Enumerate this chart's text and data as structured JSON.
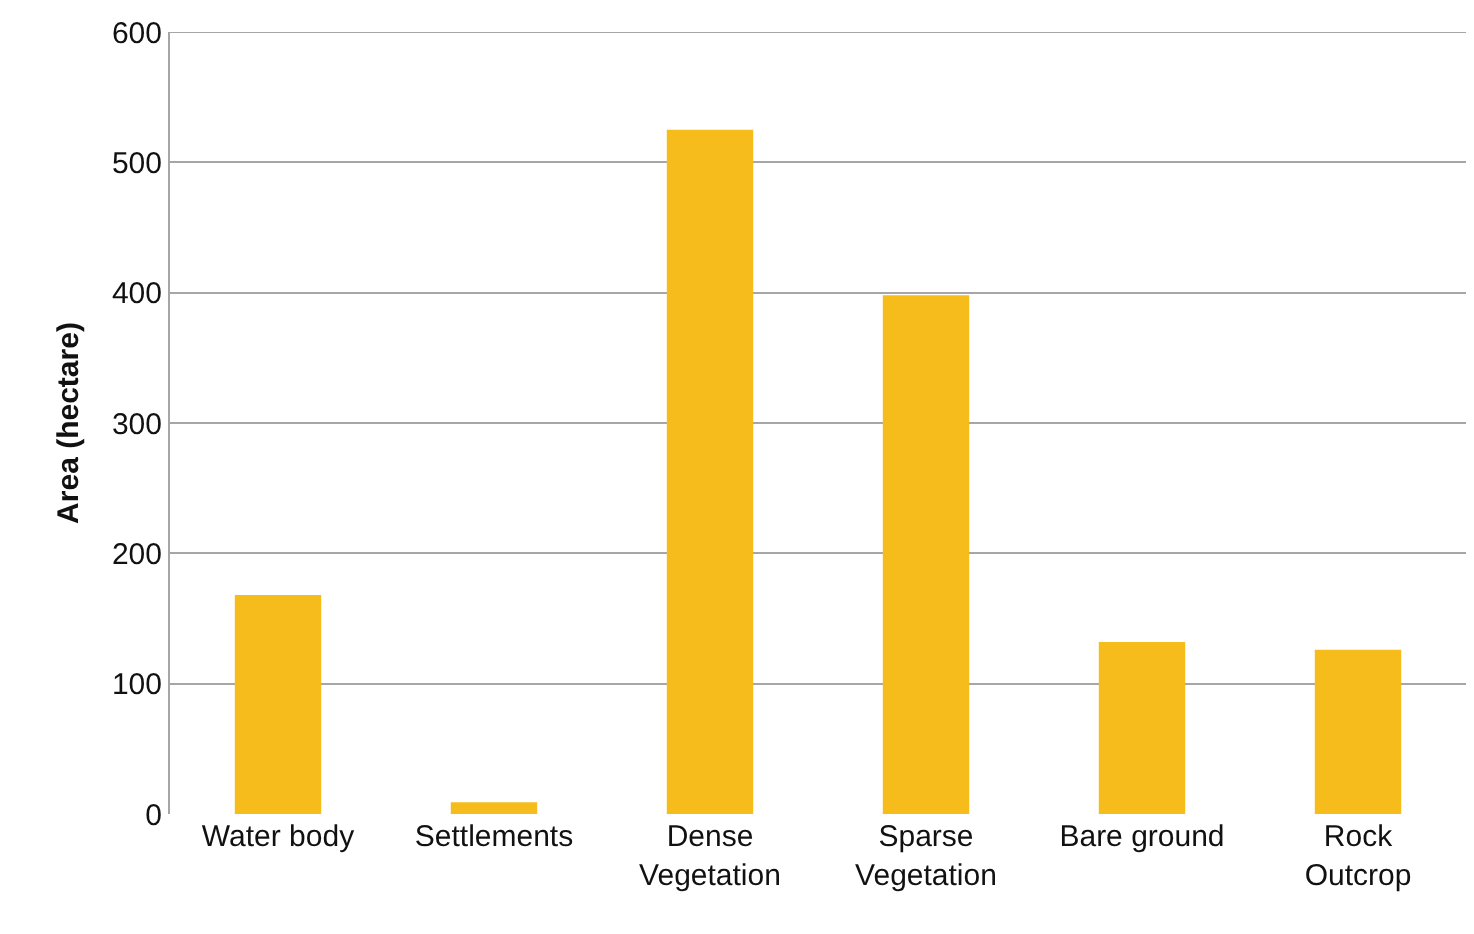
{
  "chart_data": {
    "type": "bar",
    "ylabel": "Area (hectare)",
    "categories": [
      "Water body",
      "Settlements",
      "Dense\nVegetation",
      "Sparse\nVegetation",
      "Bare ground",
      "Rock\nOutcrop"
    ],
    "values": [
      168,
      9,
      525,
      398,
      132,
      126
    ],
    "color": "#f5bc1c",
    "ylim": [
      0,
      600
    ],
    "yticks": [
      0,
      100,
      200,
      300,
      400,
      500,
      600
    ],
    "grid": "y"
  }
}
